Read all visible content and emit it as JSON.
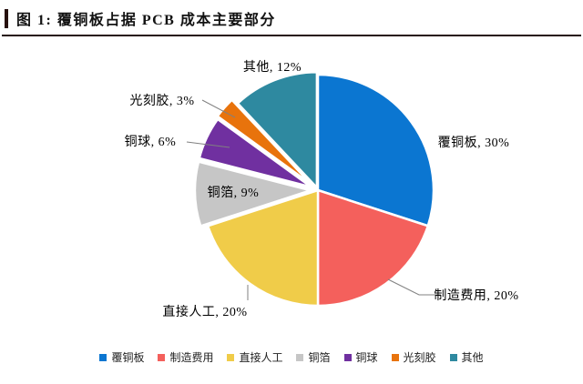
{
  "header": {
    "title": "图 1: 覆铜板占据 PCB 成本主要部分"
  },
  "chart_data": {
    "type": "pie",
    "title": "覆铜板占据 PCB 成本主要部分",
    "units": "%",
    "start_angle_deg": 0,
    "direction": "clockwise",
    "legend_position": "bottom",
    "slices": [
      {
        "label": "覆铜板",
        "name_en": "copper-clad-laminate",
        "value": 30,
        "color": "#0b76d1",
        "data_label": "覆铜板, 30%"
      },
      {
        "label": "制造费用",
        "name_en": "manufacturing-cost",
        "value": 20,
        "color": "#f4605c",
        "data_label": "制造费用, 20%"
      },
      {
        "label": "直接人工",
        "name_en": "direct-labor",
        "value": 20,
        "color": "#f0cc49",
        "data_label": "直接人工, 20%"
      },
      {
        "label": "铜箔",
        "name_en": "copper-foil",
        "value": 9,
        "color": "#c6c6c6",
        "data_label": "铜箔, 9%"
      },
      {
        "label": "铜球",
        "name_en": "copper-ball",
        "value": 6,
        "color": "#7030a0",
        "data_label": "铜球, 6%"
      },
      {
        "label": "光刻胶",
        "name_en": "photoresist",
        "value": 3,
        "color": "#e8730c",
        "data_label": "光刻胶, 3%"
      },
      {
        "label": "其他",
        "name_en": "others",
        "value": 12,
        "color": "#2e89a0",
        "data_label": "其他, 12%"
      }
    ],
    "legend": [
      "覆铜板",
      "制造费用",
      "直接人工",
      "铜箔",
      "铜球",
      "光刻胶",
      "其他"
    ]
  }
}
